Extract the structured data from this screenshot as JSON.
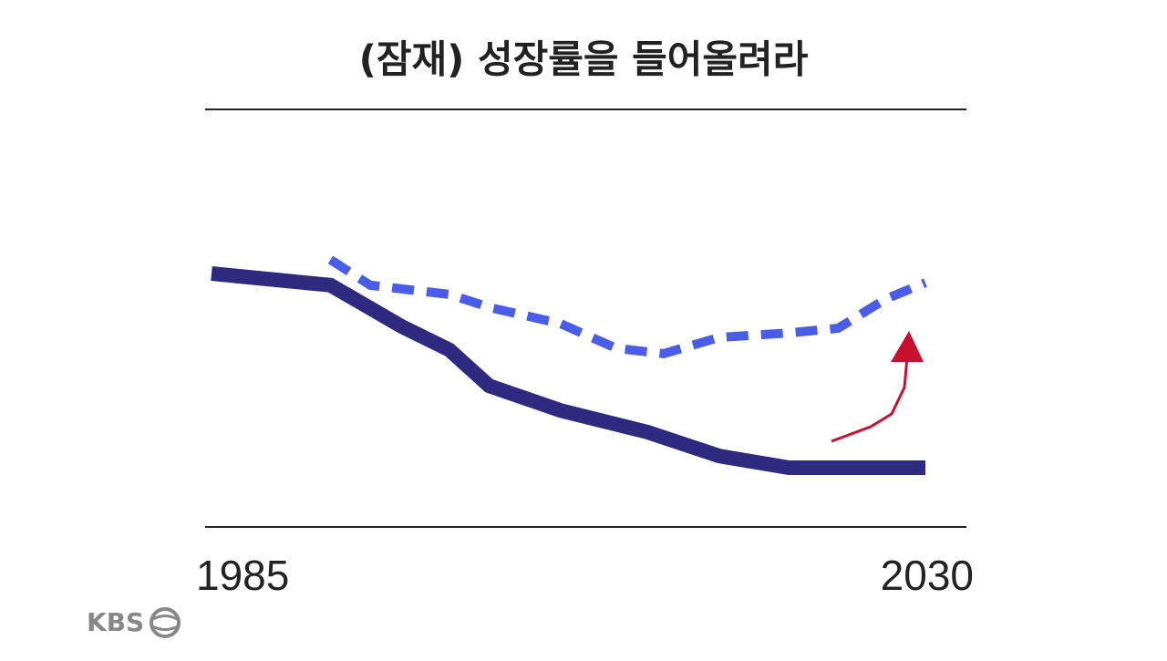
{
  "chart_data": {
    "type": "line",
    "title": "(잠재) 성장률을 들어올려라",
    "xlim": [
      1985,
      2030
    ],
    "xticks": [
      1985,
      2030
    ],
    "ylim": [
      0,
      100
    ],
    "grid": false,
    "series": [
      {
        "color": "#2e2a80",
        "style": "solid",
        "x": [
          1985,
          1992.5,
          1997,
          2000,
          2002.5,
          2007,
          2012.5,
          2017,
          2021.4,
          2030
        ],
        "values": [
          60.7,
          57.9,
          48.0,
          42.4,
          33.8,
          27.9,
          22.7,
          17.0,
          14.2,
          14.2
        ]
      },
      {
        "color": "#4a5de8",
        "style": "dashed",
        "x": [
          1992.5,
          1995,
          2000,
          2002.5,
          2007,
          2010.5,
          2013.5,
          2017,
          2021.5,
          2024.5,
          2027.5,
          2030
        ],
        "values": [
          64.0,
          57.9,
          55.7,
          52.6,
          48.7,
          42.8,
          41.5,
          45.4,
          46.5,
          47.6,
          54.6,
          58.5
        ]
      }
    ],
    "logo": "KBS"
  }
}
